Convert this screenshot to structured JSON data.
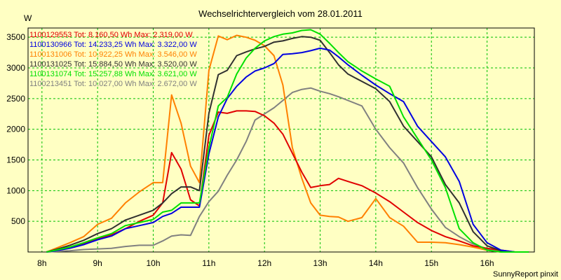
{
  "chart_data": {
    "type": "line",
    "title": "Wechselrichtervergleich vom 28.01.2011",
    "ylabel": "W",
    "xlabel": "",
    "footer": "SunnyReport pinxit",
    "grid": true,
    "legend_position": "top-left",
    "xlim": [
      7.75,
      16.85
    ],
    "ylim": [
      0,
      3650
    ],
    "x_ticks": [
      8,
      9,
      10,
      11,
      12,
      13,
      14,
      15,
      16
    ],
    "x_tick_labels": [
      "8h",
      "9h",
      "10h",
      "11h",
      "12h",
      "13h",
      "14h",
      "15h",
      "16h"
    ],
    "y_ticks": [
      500,
      1000,
      1500,
      2000,
      2500,
      3000,
      3500
    ],
    "y_tick_labels": [
      "500",
      "1000",
      "1500",
      "2000",
      "2500",
      "3000",
      "3500"
    ],
    "x": [
      8.08,
      8.25,
      8.5,
      8.75,
      9.0,
      9.25,
      9.5,
      9.75,
      10.0,
      10.17,
      10.33,
      10.5,
      10.67,
      10.83,
      11.0,
      11.17,
      11.33,
      11.5,
      11.67,
      11.83,
      12.0,
      12.17,
      12.33,
      12.5,
      12.67,
      12.83,
      13.0,
      13.17,
      13.33,
      13.5,
      13.75,
      14.0,
      14.25,
      14.5,
      14.75,
      15.0,
      15.25,
      15.5,
      15.75,
      16.0,
      16.25,
      16.5,
      16.75
    ],
    "series": [
      {
        "name": "1100129553",
        "legend": "1100129553 Tot: 8.160,50 Wh Max: 2.319,00 W",
        "color": "#e00000",
        "values": [
          0,
          30,
          80,
          140,
          220,
          280,
          380,
          500,
          600,
          800,
          1620,
          1350,
          850,
          750,
          1900,
          2280,
          2260,
          2300,
          2300,
          2290,
          2220,
          2100,
          1920,
          1610,
          1300,
          1050,
          1080,
          1100,
          1200,
          1150,
          1080,
          960,
          820,
          650,
          480,
          350,
          250,
          180,
          100,
          60,
          30,
          0,
          0
        ]
      },
      {
        "name": "1100130966",
        "legend": "1100130966 Tot: 14.233,25 Wh Max: 3.322,00 W",
        "color": "#0000e0",
        "values": [
          0,
          20,
          60,
          120,
          200,
          260,
          380,
          430,
          480,
          580,
          630,
          730,
          730,
          730,
          1600,
          2200,
          2500,
          2700,
          2850,
          2950,
          3000,
          3070,
          3220,
          3230,
          3250,
          3280,
          3320,
          3290,
          3180,
          3050,
          2880,
          2720,
          2580,
          2450,
          2050,
          1800,
          1550,
          1150,
          450,
          150,
          30,
          0,
          0
        ]
      },
      {
        "name": "1100131006",
        "legend": "1100131006 Tot: 10.922,25 Wh Max: 3.546,00 W",
        "color": "#ff8000",
        "values": [
          0,
          60,
          150,
          250,
          450,
          550,
          800,
          980,
          1130,
          1130,
          2560,
          2100,
          1400,
          1130,
          2960,
          3520,
          3460,
          3530,
          3500,
          3450,
          3360,
          3200,
          2720,
          1700,
          1200,
          800,
          600,
          580,
          570,
          500,
          560,
          870,
          560,
          420,
          160,
          160,
          150,
          120,
          80,
          30,
          0,
          0,
          0
        ]
      },
      {
        "name": "1100131025",
        "legend": "1100131025 Tot: 15.884,50 Wh Max: 3.520,00 W",
        "color": "#303030",
        "values": [
          0,
          40,
          110,
          190,
          300,
          380,
          520,
          600,
          680,
          800,
          950,
          1060,
          1060,
          1000,
          2260,
          2890,
          2960,
          3200,
          3260,
          3310,
          3350,
          3420,
          3440,
          3480,
          3510,
          3500,
          3450,
          3250,
          3050,
          2900,
          2780,
          2660,
          2450,
          2050,
          1800,
          1550,
          1100,
          800,
          330,
          100,
          20,
          0,
          0
        ]
      },
      {
        "name": "1100131074",
        "legend": "1100131074 Tot: 15.257,88 Wh Max: 3.621,00 W",
        "color": "#00e000",
        "values": [
          0,
          30,
          80,
          150,
          230,
          300,
          430,
          480,
          530,
          650,
          680,
          800,
          800,
          800,
          1700,
          2380,
          2520,
          2900,
          3160,
          3320,
          3440,
          3510,
          3550,
          3570,
          3610,
          3621,
          3550,
          3400,
          3250,
          3100,
          2950,
          2820,
          2700,
          2200,
          1850,
          1500,
          1050,
          380,
          150,
          30,
          0,
          0,
          0
        ]
      },
      {
        "name": "1100213451",
        "legend": "1100213451 Tot: 10.027,00 Wh Max: 2.672,00 W",
        "color": "#808080",
        "values": [
          0,
          10,
          20,
          40,
          50,
          60,
          90,
          110,
          110,
          180,
          260,
          280,
          270,
          580,
          820,
          990,
          1250,
          1500,
          1800,
          2150,
          2250,
          2350,
          2470,
          2600,
          2650,
          2672,
          2620,
          2580,
          2530,
          2470,
          2380,
          2000,
          1700,
          1450,
          1050,
          700,
          400,
          250,
          130,
          50,
          10,
          0,
          0
        ]
      }
    ]
  }
}
